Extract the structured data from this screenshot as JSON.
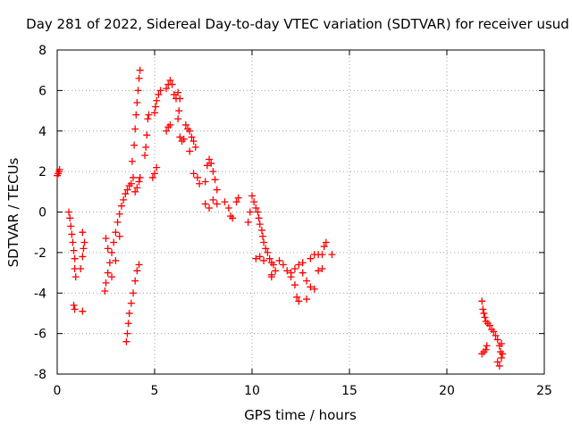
{
  "chart_data": {
    "type": "scatter",
    "title": "Day 281 of 2022, Sidereal Day-to-day VTEC variation (SDTVAR) for receiver usud",
    "xlabel": "GPS time / hours",
    "ylabel": "SDTVAR / TECUs",
    "xlim": [
      0,
      25
    ],
    "ylim": [
      -8,
      8
    ],
    "xticks": [
      0,
      5,
      10,
      15,
      20,
      25
    ],
    "yticks": [
      -8,
      -6,
      -4,
      -2,
      0,
      2,
      4,
      6,
      8
    ],
    "xtick_labels": [
      "0",
      "5",
      "10",
      "15",
      "20",
      "25"
    ],
    "ytick_labels": [
      "-8",
      "-6",
      "-4",
      "-2",
      "0",
      "2",
      "4",
      "6",
      "8"
    ],
    "grid": true,
    "marker": "+",
    "marker_color": "#ff0000",
    "series": [
      {
        "name": "usud",
        "points": [
          [
            0.0,
            1.8
          ],
          [
            0.05,
            1.9
          ],
          [
            0.1,
            2.0
          ],
          [
            0.12,
            2.1
          ],
          [
            0.6,
            0.0
          ],
          [
            0.65,
            -0.3
          ],
          [
            0.7,
            -0.7
          ],
          [
            0.75,
            -1.1
          ],
          [
            0.8,
            -1.5
          ],
          [
            0.85,
            -1.9
          ],
          [
            0.9,
            -2.3
          ],
          [
            0.9,
            -2.8
          ],
          [
            0.95,
            -3.2
          ],
          [
            0.85,
            -4.6
          ],
          [
            0.9,
            -4.8
          ],
          [
            1.3,
            -4.9
          ],
          [
            1.2,
            -2.8
          ],
          [
            1.3,
            -2.2
          ],
          [
            1.35,
            -1.8
          ],
          [
            1.4,
            -1.5
          ],
          [
            1.3,
            -1.0
          ],
          [
            2.45,
            -3.9
          ],
          [
            2.5,
            -3.5
          ],
          [
            2.6,
            -3.0
          ],
          [
            2.7,
            -2.5
          ],
          [
            2.8,
            -2.0
          ],
          [
            2.9,
            -1.5
          ],
          [
            3.0,
            -1.0
          ],
          [
            3.1,
            -0.5
          ],
          [
            3.2,
            -0.1
          ],
          [
            3.3,
            0.3
          ],
          [
            3.4,
            0.6
          ],
          [
            3.5,
            0.9
          ],
          [
            3.6,
            1.1
          ],
          [
            3.7,
            1.3
          ],
          [
            2.5,
            -1.3
          ],
          [
            2.6,
            -1.8
          ],
          [
            2.8,
            -3.2
          ],
          [
            3.0,
            -2.4
          ],
          [
            3.2,
            -1.2
          ],
          [
            3.55,
            -6.4
          ],
          [
            3.6,
            -6.0
          ],
          [
            3.65,
            -5.5
          ],
          [
            3.7,
            -5.0
          ],
          [
            3.8,
            -4.5
          ],
          [
            3.9,
            -4.0
          ],
          [
            4.0,
            -3.4
          ],
          [
            4.1,
            -2.9
          ],
          [
            4.2,
            -2.6
          ],
          [
            3.8,
            1.4
          ],
          [
            3.9,
            1.7
          ],
          [
            3.85,
            2.5
          ],
          [
            3.95,
            3.3
          ],
          [
            4.0,
            4.1
          ],
          [
            4.05,
            4.8
          ],
          [
            4.1,
            5.4
          ],
          [
            4.15,
            6.0
          ],
          [
            4.2,
            6.6
          ],
          [
            4.25,
            7.0
          ],
          [
            4.0,
            1.0
          ],
          [
            4.1,
            1.2
          ],
          [
            4.2,
            1.5
          ],
          [
            4.25,
            1.7
          ],
          [
            4.5,
            2.8
          ],
          [
            4.55,
            3.2
          ],
          [
            4.6,
            3.8
          ],
          [
            4.65,
            4.6
          ],
          [
            4.7,
            4.8
          ],
          [
            4.9,
            1.7
          ],
          [
            5.0,
            1.9
          ],
          [
            5.1,
            2.2
          ],
          [
            5.0,
            4.9
          ],
          [
            5.05,
            5.2
          ],
          [
            5.1,
            5.5
          ],
          [
            5.2,
            5.8
          ],
          [
            5.3,
            6.0
          ],
          [
            5.6,
            4.0
          ],
          [
            5.7,
            4.2
          ],
          [
            5.8,
            4.3
          ],
          [
            5.6,
            6.1
          ],
          [
            5.7,
            6.3
          ],
          [
            5.8,
            6.5
          ],
          [
            5.9,
            6.3
          ],
          [
            6.0,
            5.8
          ],
          [
            6.1,
            5.6
          ],
          [
            6.2,
            5.9
          ],
          [
            6.3,
            5.6
          ],
          [
            6.25,
            5.0
          ],
          [
            6.2,
            4.6
          ],
          [
            6.3,
            3.7
          ],
          [
            6.4,
            3.5
          ],
          [
            6.5,
            3.6
          ],
          [
            6.6,
            4.3
          ],
          [
            6.7,
            4.1
          ],
          [
            6.8,
            4.0
          ],
          [
            6.9,
            3.7
          ],
          [
            7.0,
            3.5
          ],
          [
            7.1,
            3.2
          ],
          [
            6.8,
            3.0
          ],
          [
            7.0,
            1.9
          ],
          [
            7.2,
            1.7
          ],
          [
            7.3,
            1.4
          ],
          [
            7.6,
            1.5
          ],
          [
            7.7,
            2.3
          ],
          [
            7.8,
            2.6
          ],
          [
            7.9,
            2.4
          ],
          [
            8.0,
            2.0
          ],
          [
            8.1,
            1.6
          ],
          [
            8.2,
            1.1
          ],
          [
            7.6,
            0.4
          ],
          [
            7.8,
            0.2
          ],
          [
            8.0,
            0.6
          ],
          [
            8.2,
            0.4
          ],
          [
            8.6,
            0.5
          ],
          [
            8.8,
            0.2
          ],
          [
            8.9,
            -0.2
          ],
          [
            9.0,
            -0.3
          ],
          [
            9.2,
            0.5
          ],
          [
            9.3,
            0.7
          ],
          [
            9.8,
            -0.5
          ],
          [
            9.9,
            0.0
          ],
          [
            10.0,
            0.8
          ],
          [
            10.1,
            0.5
          ],
          [
            10.2,
            0.2
          ],
          [
            10.3,
            0.0
          ],
          [
            10.35,
            -0.3
          ],
          [
            10.4,
            -0.6
          ],
          [
            10.5,
            -0.9
          ],
          [
            10.55,
            -1.2
          ],
          [
            10.6,
            -1.5
          ],
          [
            10.7,
            -1.8
          ],
          [
            10.8,
            -2.0
          ],
          [
            10.9,
            -2.3
          ],
          [
            11.0,
            -2.5
          ],
          [
            11.1,
            -2.6
          ],
          [
            11.2,
            -2.9
          ],
          [
            10.2,
            -2.3
          ],
          [
            10.4,
            -2.2
          ],
          [
            10.6,
            -2.4
          ],
          [
            11.0,
            -3.1
          ],
          [
            11.0,
            -3.2
          ],
          [
            11.4,
            -2.4
          ],
          [
            11.6,
            -2.6
          ],
          [
            11.8,
            -2.9
          ],
          [
            12.0,
            -3.2
          ],
          [
            12.2,
            -3.6
          ],
          [
            12.3,
            -4.2
          ],
          [
            12.4,
            -4.4
          ],
          [
            12.6,
            -3.0
          ],
          [
            12.8,
            -3.4
          ],
          [
            13.0,
            -3.7
          ],
          [
            13.2,
            -3.8
          ],
          [
            12.8,
            -4.3
          ],
          [
            12.0,
            -3.0
          ],
          [
            12.2,
            -2.8
          ],
          [
            12.4,
            -2.6
          ],
          [
            12.6,
            -2.5
          ],
          [
            13.0,
            -2.3
          ],
          [
            13.2,
            -2.1
          ],
          [
            13.4,
            -2.1
          ],
          [
            13.6,
            -2.1
          ],
          [
            13.7,
            -1.7
          ],
          [
            13.8,
            -1.5
          ],
          [
            14.1,
            -2.1
          ],
          [
            13.4,
            -2.9
          ],
          [
            13.6,
            -2.8
          ],
          [
            21.8,
            -4.4
          ],
          [
            21.85,
            -4.8
          ],
          [
            21.9,
            -5.0
          ],
          [
            21.95,
            -5.2
          ],
          [
            22.0,
            -5.4
          ],
          [
            22.1,
            -5.5
          ],
          [
            22.2,
            -5.6
          ],
          [
            22.3,
            -5.8
          ],
          [
            22.4,
            -5.9
          ],
          [
            22.5,
            -6.1
          ],
          [
            22.6,
            -6.3
          ],
          [
            22.7,
            -6.6
          ],
          [
            22.75,
            -6.9
          ],
          [
            22.8,
            -7.2
          ],
          [
            21.8,
            -7.0
          ],
          [
            21.9,
            -6.9
          ],
          [
            22.0,
            -6.8
          ],
          [
            22.05,
            -6.6
          ],
          [
            22.6,
            -7.4
          ],
          [
            22.7,
            -7.6
          ],
          [
            22.8,
            -6.5
          ],
          [
            22.85,
            -7.0
          ]
        ]
      }
    ]
  }
}
